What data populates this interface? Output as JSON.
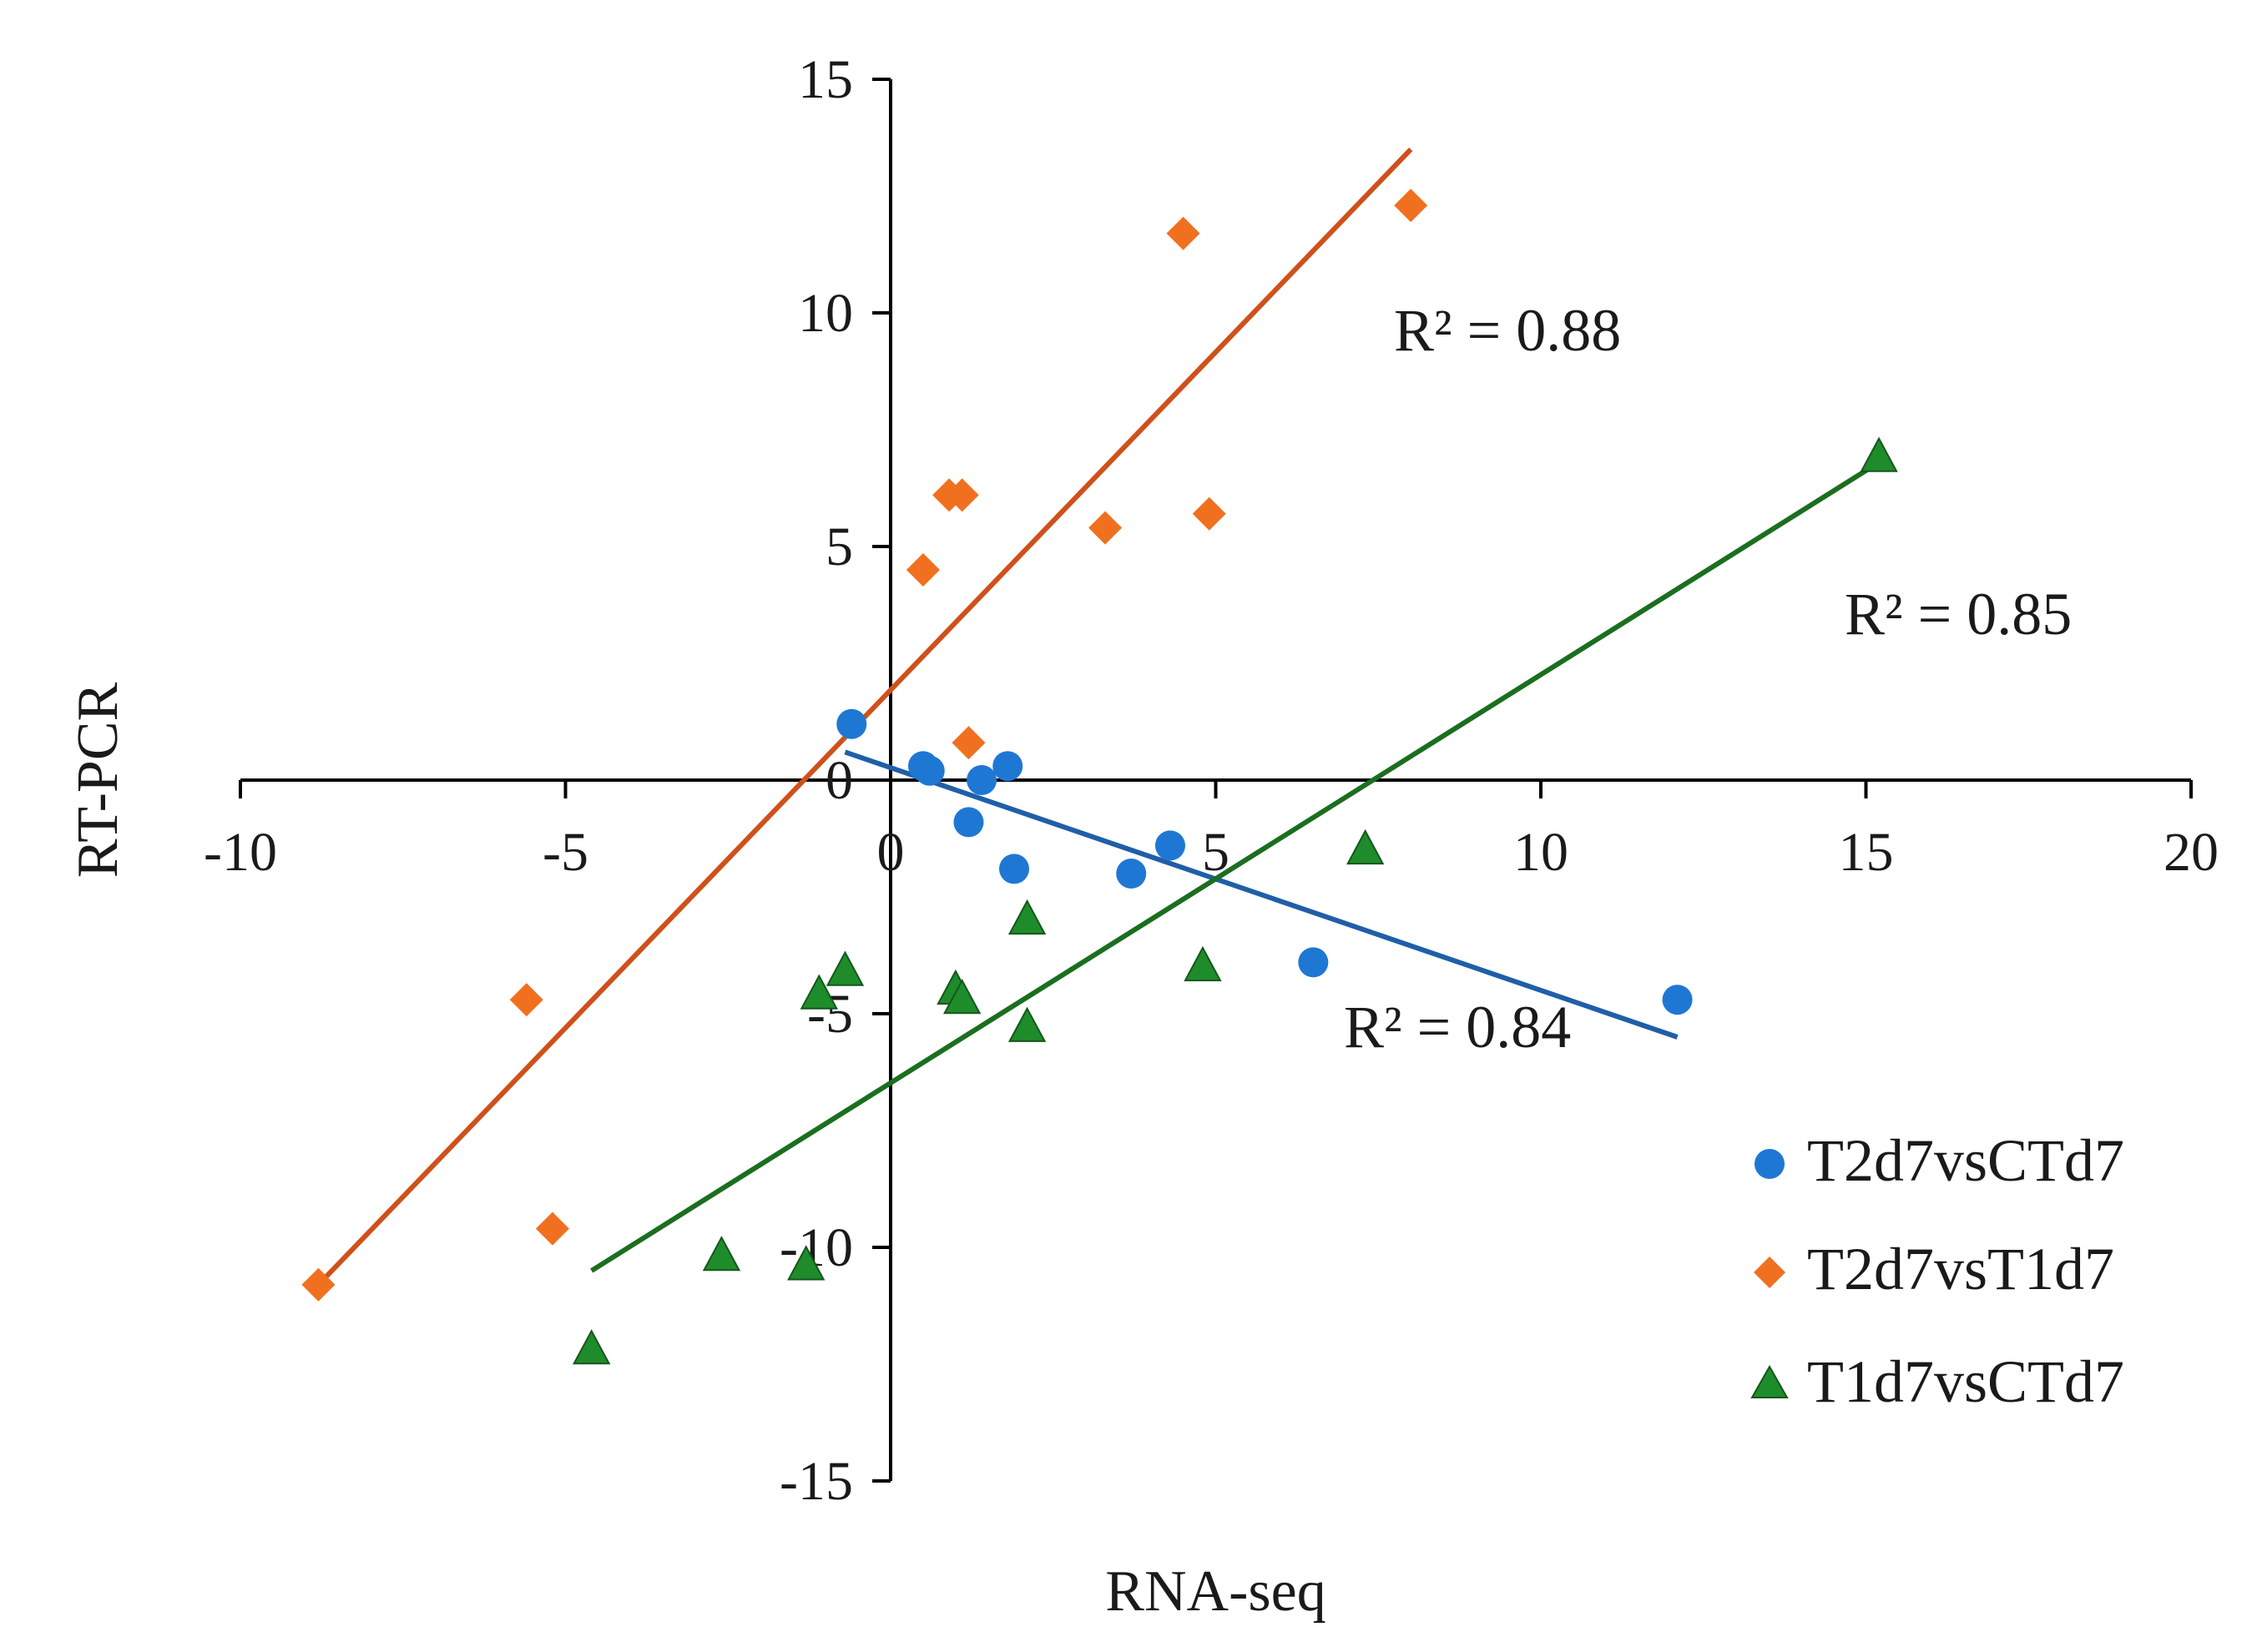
{
  "chart_data": {
    "type": "scatter",
    "xlabel": "RNA-seq",
    "ylabel": "RT-PCR",
    "xlim": [
      -10,
      20
    ],
    "ylim": [
      -15,
      15
    ],
    "x_ticks": [
      "-10",
      "-5",
      "0",
      "5",
      "10",
      "15",
      "20"
    ],
    "y_ticks": [
      "15",
      "10",
      "5",
      "0",
      "-5",
      "-10",
      "-15"
    ],
    "grid": false,
    "legend_position": "bottom-right",
    "series": [
      {
        "name": "T2d7vsCTd7",
        "marker": "circle",
        "color": "#1f77d4",
        "line_color": "#1f5fa8",
        "r2_label": "R² = 0.84",
        "points": [
          [
            -0.6,
            1.2
          ],
          [
            0.5,
            0.3
          ],
          [
            0.6,
            0.2
          ],
          [
            1.4,
            0.0
          ],
          [
            1.8,
            0.3
          ],
          [
            1.2,
            -0.9
          ],
          [
            1.9,
            -1.9
          ],
          [
            3.7,
            -2.0
          ],
          [
            4.3,
            -1.4
          ],
          [
            6.5,
            -3.9
          ],
          [
            12.1,
            -4.7
          ]
        ],
        "trend": [
          [
            -0.7,
            0.6
          ],
          [
            12.1,
            -5.5
          ]
        ]
      },
      {
        "name": "T2d7vsT1d7",
        "marker": "diamond",
        "color": "#f07020",
        "line_color": "#d0501a",
        "r2_label": "R² = 0.88",
        "points": [
          [
            -8.8,
            -10.8
          ],
          [
            -5.6,
            -4.7
          ],
          [
            -5.2,
            -9.6
          ],
          [
            0.5,
            4.5
          ],
          [
            0.9,
            6.1
          ],
          [
            1.1,
            6.1
          ],
          [
            1.2,
            0.8
          ],
          [
            3.3,
            5.4
          ],
          [
            4.5,
            11.7
          ],
          [
            4.9,
            5.7
          ],
          [
            8.0,
            12.3
          ]
        ],
        "trend": [
          [
            -8.8,
            -10.8
          ],
          [
            8.0,
            13.5
          ]
        ]
      },
      {
        "name": "T1d7vsCTd7",
        "marker": "triangle",
        "color": "#1e8c2a",
        "line_color": "#1b6e1f",
        "r2_label": "R² = 0.85",
        "points": [
          [
            -4.6,
            -12.2
          ],
          [
            -2.6,
            -10.2
          ],
          [
            -1.3,
            -10.4
          ],
          [
            -1.1,
            -4.6
          ],
          [
            -0.7,
            -4.1
          ],
          [
            1.0,
            -4.5
          ],
          [
            1.1,
            -4.7
          ],
          [
            2.1,
            -3.0
          ],
          [
            2.1,
            -5.3
          ],
          [
            4.8,
            -4.0
          ],
          [
            7.3,
            -1.5
          ],
          [
            15.2,
            6.9
          ]
        ],
        "trend": [
          [
            -4.6,
            -10.5
          ],
          [
            15.2,
            6.8
          ]
        ]
      }
    ]
  }
}
